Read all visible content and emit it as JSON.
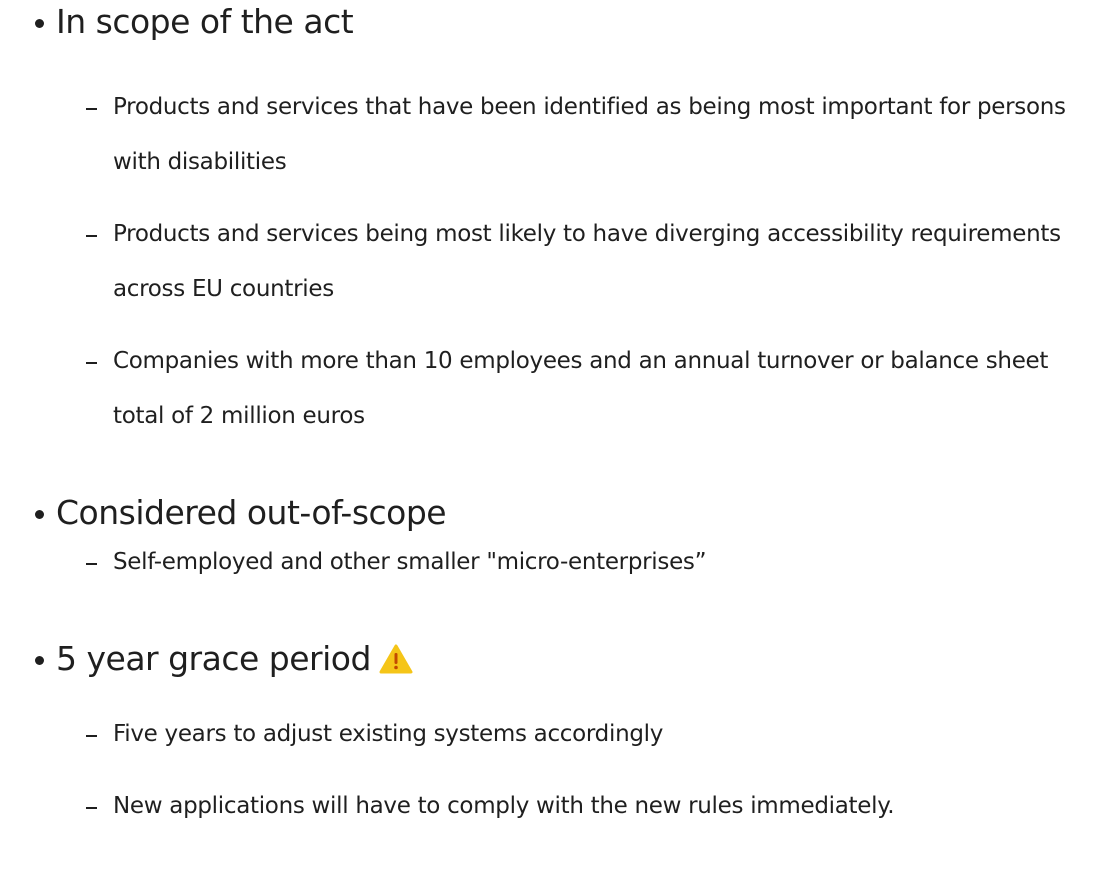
{
  "sections": [
    {
      "title": "In scope of the act",
      "items": [
        "Products and services that have been identified as being most important for persons with disabilities",
        "Products and services being most likely to have diverging accessibility requirements across EU countries",
        "Companies with more than 10 employees and an annual turnover or balance sheet total of 2 million euros"
      ]
    },
    {
      "title": "Considered out-of-scope",
      "items": [
        "Self-employed and other smaller \"micro-enterprises”"
      ]
    },
    {
      "title": "5 year grace period",
      "items": [
        "Five years to adjust existing systems accordingly",
        "New applications will have to comply with the new rules immediately."
      ]
    }
  ]
}
